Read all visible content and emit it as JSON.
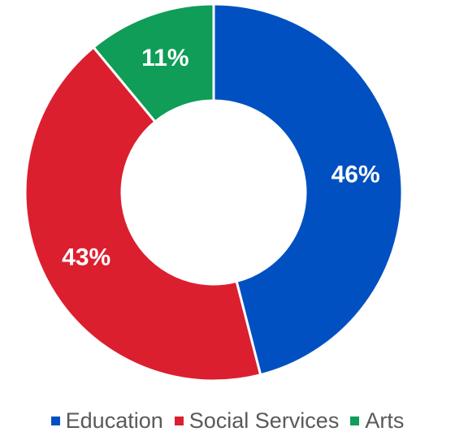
{
  "chart_data": {
    "type": "pie",
    "variant": "donut",
    "title": "",
    "categories": [
      "Education",
      "Social Services",
      "Arts"
    ],
    "values": [
      46,
      43,
      11
    ],
    "labels": [
      "46%",
      "43%",
      "11%"
    ],
    "colors": [
      "#0050C1",
      "#DB1F2F",
      "#0F9D58"
    ],
    "legend": "bottom"
  }
}
